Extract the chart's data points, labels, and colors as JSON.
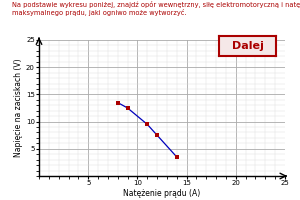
{
  "title_line1": "Na podstawie wykresu poniżej, znajdź opór wewnętrzny, siłę elektromotoryczną i natężenie",
  "title_line2": "maksymalnego prądu, jaki ogniwo może wytworzyć.",
  "xlabel": "Natężenie prądu (A)",
  "ylabel": "Napięcie na zaciskach (V)",
  "xlim": [
    0,
    25
  ],
  "ylim": [
    0,
    25
  ],
  "xticks": [
    5,
    10,
    15,
    20,
    25
  ],
  "yticks": [
    5,
    10,
    15,
    20,
    25
  ],
  "data_x": [
    8,
    9,
    11,
    12,
    14
  ],
  "data_y": [
    13.5,
    12.5,
    9.5,
    7.5,
    3.5
  ],
  "line_color": "#0000bb",
  "marker_color": "#aa0000",
  "marker_size": 3.5,
  "button_text": "Dalej",
  "button_text_color": "#aa0000",
  "button_border_color": "#aa0000",
  "button_bg": "#f5e8e8",
  "background_color": "#ffffff",
  "grid_major_color": "#aaaaaa",
  "grid_minor_color": "#dddddd",
  "title_color": "#aa0000",
  "title_fontsize": 4.8,
  "axis_label_fontsize": 5.5,
  "tick_fontsize": 5.0,
  "button_fontsize": 8
}
